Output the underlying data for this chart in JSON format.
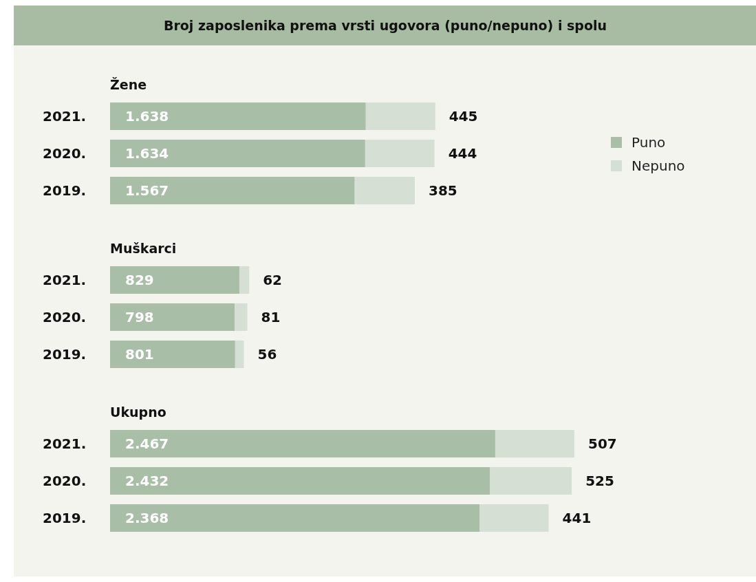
{
  "chart_data": [
    {
      "type": "bar",
      "orientation": "horizontal",
      "stacked": true,
      "title": "Broj zaposlenika prema vrsti ugovora (puno/nepuno) i spolu",
      "subtitle": "Žene",
      "categories": [
        "2021.",
        "2020.",
        "2019."
      ],
      "series": [
        {
          "name": "Puno",
          "color": "#a9bea6",
          "values": [
            1638,
            1634,
            1567
          ],
          "value_labels": [
            "1.638",
            "1.634",
            "1.567"
          ]
        },
        {
          "name": "Nepuno",
          "color": "#d6dfd3",
          "values": [
            445,
            444,
            385
          ],
          "value_labels": [
            "445",
            "444",
            "385"
          ]
        }
      ],
      "legend": "top right",
      "grid": false
    },
    {
      "type": "bar",
      "orientation": "horizontal",
      "stacked": true,
      "subtitle": "Muškarci",
      "categories": [
        "2021.",
        "2020.",
        "2019."
      ],
      "series": [
        {
          "color": "#a9bea6",
          "values": [
            829,
            798,
            801
          ],
          "value_labels": [
            "829",
            "798",
            "801"
          ]
        },
        {
          "color": "#d6dfd3",
          "values": [
            62,
            81,
            56
          ],
          "value_labels": [
            "62",
            "81",
            "56"
          ]
        }
      ],
      "grid": false
    },
    {
      "type": "bar",
      "orientation": "horizontal",
      "stacked": true,
      "subtitle": "Ukupno",
      "categories": [
        "2021.",
        "2020.",
        "2019."
      ],
      "series": [
        {
          "color": "#a9bea6",
          "values": [
            2467,
            2432,
            2368
          ],
          "value_labels": [
            "2.467",
            "2.432",
            "2.368"
          ]
        },
        {
          "color": "#d6dfd3",
          "values": [
            507,
            525,
            441
          ],
          "value_labels": [
            "507",
            "525",
            "441"
          ]
        }
      ],
      "grid": false
    }
  ]
}
